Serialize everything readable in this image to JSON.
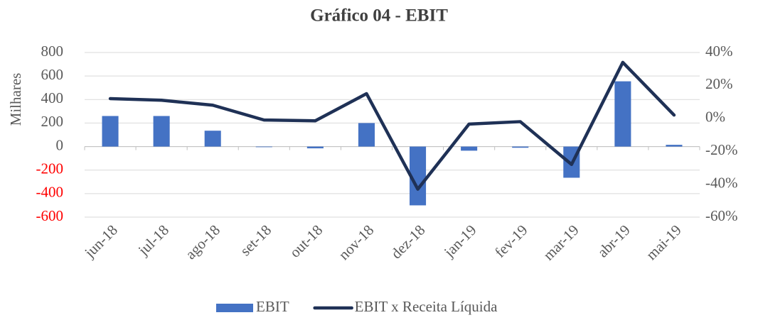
{
  "chart_data": {
    "type": "bar_line",
    "title": "Gráfico 04 - EBIT",
    "y_label": "Milhares",
    "categories": [
      "jun-18",
      "jul-18",
      "ago-18",
      "set-18",
      "out-18",
      "nov-18",
      "dez-18",
      "jan-19",
      "fev-19",
      "mar-19",
      "abr-19",
      "mai-19"
    ],
    "series": [
      {
        "name": "EBIT",
        "type": "bar",
        "color": "#4472c4",
        "values": [
          260,
          260,
          135,
          -5,
          -15,
          200,
          -500,
          -35,
          -10,
          -265,
          555,
          15
        ]
      },
      {
        "name": "EBIT x Receita Líquida",
        "type": "line",
        "axis": "y2",
        "color": "#1f3156",
        "values": [
          12,
          11,
          8,
          -1,
          -1.5,
          15,
          -43,
          -3.5,
          -2,
          -28,
          34,
          2
        ]
      }
    ],
    "ylim": [
      -600,
      800
    ],
    "yticks": [
      800,
      600,
      400,
      200,
      0,
      -200,
      -400,
      -600
    ],
    "negative_tick_color": "#ff0000",
    "y2lim": [
      -60,
      40
    ],
    "y2ticks": [
      {
        "value": 40,
        "label": "40%"
      },
      {
        "value": 20,
        "label": "20%"
      },
      {
        "value": 0,
        "label": "0%"
      },
      {
        "value": -20,
        "label": "-20%"
      },
      {
        "value": -40,
        "label": "-40%"
      },
      {
        "value": -60,
        "label": "-60%"
      }
    ],
    "grid": true,
    "legend": "bottom"
  }
}
